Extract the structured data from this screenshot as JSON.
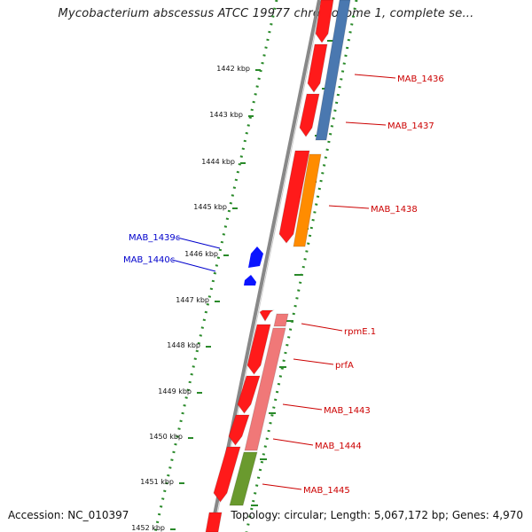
{
  "title": "Mycobacterium abscessus ATCC 19977 chromosome 1, complete se...",
  "footer": {
    "accession": "Accession: NC_010397",
    "summary": "Topology: circular; Length: 5,067,172 bp; Genes: 4,970"
  },
  "colors": {
    "forward_gene": "#ff1a1a",
    "reverse_gene": "#0a14ff",
    "cds_blue": "#4a78b0",
    "cds_orange": "#ff8c00",
    "cds_pink": "#f07878",
    "cds_green": "#6a9a2e",
    "tick_green": "#2a8a2a",
    "label_red": "#cc0000",
    "label_blue": "#0000cc"
  },
  "kbp_ticks": [
    {
      "label": "1442 kbp"
    },
    {
      "label": "1443 kbp"
    },
    {
      "label": "1444 kbp"
    },
    {
      "label": "1445 kbp"
    },
    {
      "label": "1446 kbp"
    },
    {
      "label": "1447 kbp"
    },
    {
      "label": "1448 kbp"
    },
    {
      "label": "1449 kbp"
    },
    {
      "label": "1450 kbp"
    },
    {
      "label": "1451 kbp"
    },
    {
      "label": "1452 kbp"
    }
  ],
  "gene_labels_right": [
    {
      "text": "MAB_1436"
    },
    {
      "text": "MAB_1437"
    },
    {
      "text": "MAB_1438"
    },
    {
      "text": "rpmE.1"
    },
    {
      "text": "prfA"
    },
    {
      "text": "MAB_1443"
    },
    {
      "text": "MAB_1444"
    },
    {
      "text": "MAB_1445"
    }
  ],
  "gene_labels_left": [
    {
      "text": "MAB_1439c"
    },
    {
      "text": "MAB_1440c"
    }
  ]
}
